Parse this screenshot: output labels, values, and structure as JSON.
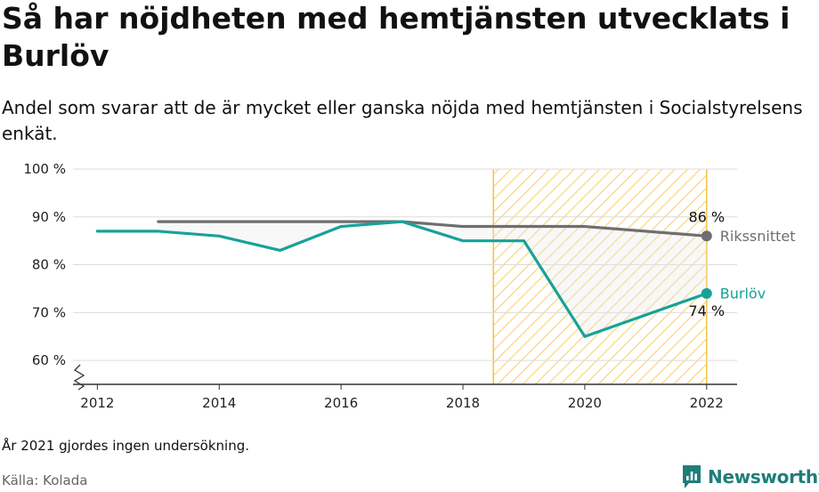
{
  "title": "Så har nöjdheten med hemtjänsten utvecklats i Burlöv",
  "subtitle": "Andel som svarar att de är mycket eller ganska nöjda med hemtjänsten i Socialstyrelsens enkät.",
  "note": "År 2021 gjordes ingen undersökning.",
  "source": "Källa: Kolada",
  "brand": {
    "name": "Newsworthy",
    "icon": "newsworthy-logo-icon",
    "color": "#1f7d7a"
  },
  "chart_data": {
    "type": "line",
    "title": "Så har nöjdheten med hemtjänsten utvecklats i Burlöv",
    "xlabel": "",
    "ylabel": "",
    "xlim": [
      2011.6,
      2022.5
    ],
    "ylim": [
      55,
      100
    ],
    "grid": true,
    "y_axis_break": true,
    "x_ticks": [
      2012,
      2014,
      2016,
      2018,
      2020,
      2022
    ],
    "y_ticks": [
      {
        "value": 60,
        "label": "60 %"
      },
      {
        "value": 70,
        "label": "70 %"
      },
      {
        "value": 80,
        "label": "80 %"
      },
      {
        "value": 90,
        "label": "90 %"
      },
      {
        "value": 100,
        "label": "100 %"
      }
    ],
    "highlight_range": {
      "x": [
        2018.5,
        2022
      ],
      "pattern": "diagonal-hatch",
      "color": "#f5c242"
    },
    "series": [
      {
        "name": "Rikssnittet",
        "color": "#6e6e72",
        "x": [
          2013,
          2014,
          2015,
          2016,
          2017,
          2018,
          2019,
          2020,
          2022
        ],
        "y": [
          89,
          89,
          89,
          89,
          89,
          88,
          88,
          88,
          86
        ],
        "end_label": "86 %"
      },
      {
        "name": "Burlöv",
        "color": "#17a297",
        "x": [
          2012,
          2013,
          2014,
          2015,
          2016,
          2017,
          2018,
          2019,
          2020,
          2022
        ],
        "y": [
          87,
          87,
          86,
          83,
          88,
          89,
          85,
          85,
          65,
          74
        ],
        "end_label": "74 %"
      }
    ],
    "gap_fill_color": "#e8e8e8"
  }
}
